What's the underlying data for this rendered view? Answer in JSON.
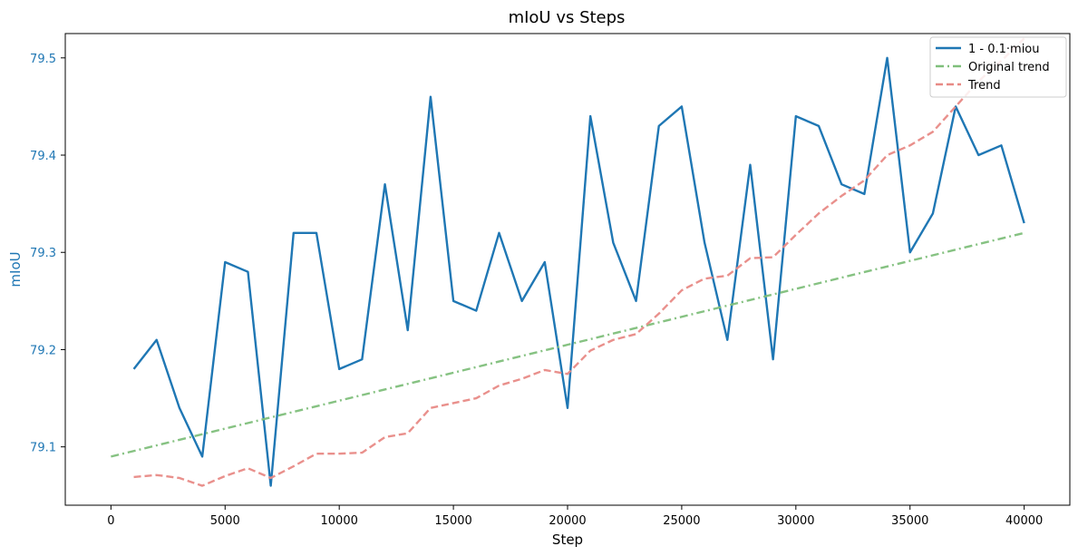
{
  "chart_data": {
    "type": "line",
    "title": "mIoU vs Steps",
    "xlabel": "Step",
    "ylabel": "mIoU",
    "xlim": [
      -2000,
      42000
    ],
    "ylim": [
      79.04,
      79.525
    ],
    "xticks": [
      0,
      5000,
      10000,
      15000,
      20000,
      25000,
      30000,
      35000,
      40000
    ],
    "xtick_labels": [
      "0",
      "5000",
      "10000",
      "15000",
      "20000",
      "25000",
      "30000",
      "35000",
      "40000"
    ],
    "yticks": [
      79.1,
      79.2,
      79.3,
      79.4,
      79.5
    ],
    "ytick_labels": [
      "79.1",
      "79.2",
      "79.3",
      "79.4",
      "79.5"
    ],
    "ylabel_color": "#1f77b4",
    "grid": false,
    "legend_position": "top-right",
    "series": [
      {
        "name": "1 - 0.1·miou",
        "color": "#1f77b4",
        "style": "solid",
        "x": [
          1000,
          2000,
          3000,
          4000,
          5000,
          6000,
          7000,
          8000,
          9000,
          10000,
          11000,
          12000,
          13000,
          14000,
          15000,
          16000,
          17000,
          18000,
          19000,
          20000,
          21000,
          22000,
          23000,
          24000,
          25000,
          26000,
          27000,
          28000,
          29000,
          30000,
          31000,
          32000,
          33000,
          34000,
          35000,
          36000,
          37000,
          38000,
          39000,
          40000
        ],
        "y": [
          79.18,
          79.21,
          79.14,
          79.09,
          79.29,
          79.28,
          79.06,
          79.32,
          79.32,
          79.18,
          79.19,
          79.37,
          79.22,
          79.46,
          79.25,
          79.24,
          79.32,
          79.25,
          79.29,
          79.14,
          79.44,
          79.31,
          79.25,
          79.43,
          79.45,
          79.31,
          79.21,
          79.39,
          79.19,
          79.44,
          79.43,
          79.37,
          79.36,
          79.5,
          79.3,
          79.34,
          79.45,
          79.4,
          79.41,
          79.33
        ]
      },
      {
        "name": "Original trend",
        "color": "#7fbf7b",
        "style": "dashdot",
        "x": [
          0,
          40000
        ],
        "y": [
          79.09,
          79.32
        ]
      },
      {
        "name": "Trend",
        "color": "#e88a86",
        "style": "dashed",
        "x": [
          1000,
          2000,
          3000,
          4000,
          5000,
          6000,
          7000,
          8000,
          9000,
          10000,
          11000,
          12000,
          13000,
          14000,
          15000,
          16000,
          17000,
          18000,
          19000,
          20000,
          21000,
          22000,
          23000,
          24000,
          25000,
          26000,
          27000,
          28000,
          29000,
          30000,
          31000,
          32000,
          33000,
          34000,
          35000,
          36000,
          37000,
          38000,
          39000,
          40000
        ],
        "y": [
          79.069,
          79.071,
          79.068,
          79.06,
          79.07,
          79.078,
          79.068,
          79.08,
          79.093,
          79.093,
          79.094,
          79.11,
          79.114,
          79.14,
          79.145,
          79.15,
          79.163,
          79.17,
          79.179,
          79.175,
          79.199,
          79.21,
          79.216,
          79.237,
          79.261,
          79.273,
          79.276,
          79.294,
          79.295,
          79.318,
          79.34,
          79.358,
          79.374,
          79.4,
          79.41,
          79.424,
          79.45,
          79.476,
          79.497,
          79.52
        ]
      }
    ]
  }
}
